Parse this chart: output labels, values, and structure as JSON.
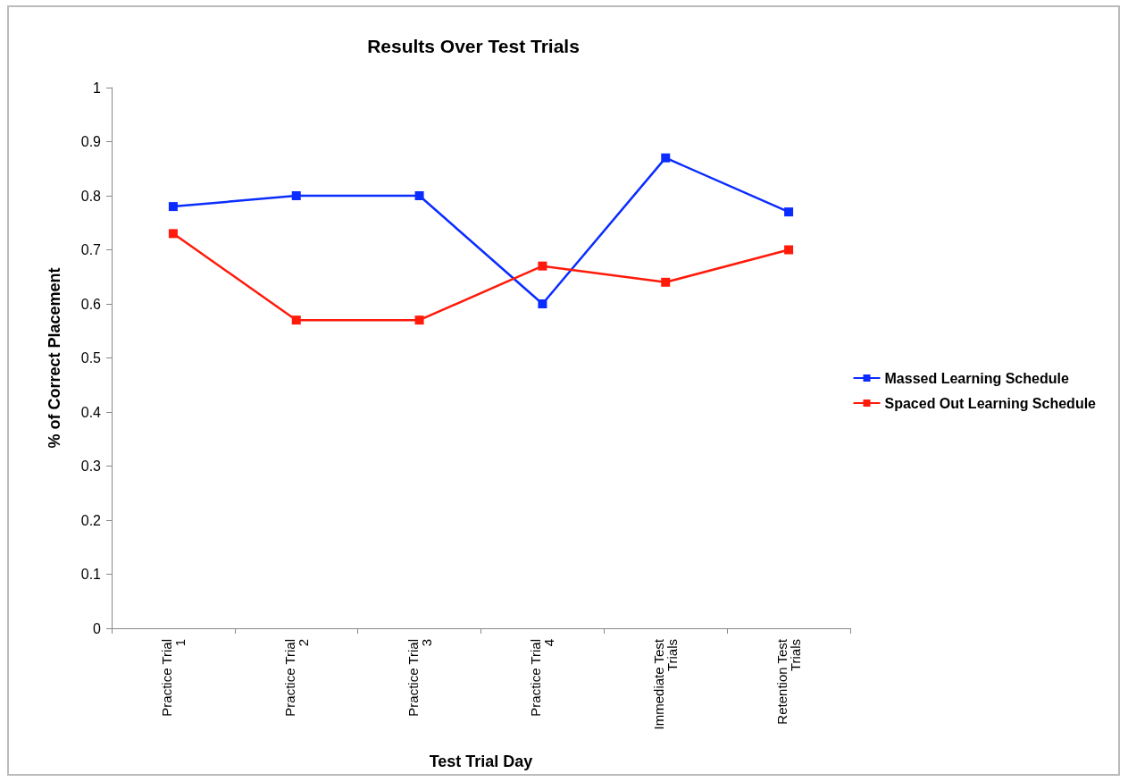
{
  "chart_data": {
    "type": "line",
    "title": "Results Over Test Trials",
    "xlabel": "Test Trial Day",
    "ylabel": "% of Correct Placement",
    "categories": [
      "Practice Trial 1",
      "Practice Trial 2",
      "Practice Trial 3",
      "Practice Trial 4",
      "Immediate Test Trials",
      "Retention Test Trials"
    ],
    "series": [
      {
        "name": "Massed Learning Schedule",
        "color": "#0a2cff",
        "values": [
          0.78,
          0.8,
          0.8,
          0.6,
          0.87,
          0.77
        ]
      },
      {
        "name": "Spaced Out Learning Schedule",
        "color": "#ff1a0a",
        "values": [
          0.73,
          0.57,
          0.57,
          0.67,
          0.64,
          0.7
        ]
      }
    ],
    "ylim": [
      0,
      1
    ],
    "yticks": [
      0,
      0.1,
      0.2,
      0.3,
      0.4,
      0.5,
      0.6,
      0.7,
      0.8,
      0.9,
      1
    ],
    "grid": false,
    "legend": "right",
    "marker": "square",
    "line_style": "solid"
  }
}
